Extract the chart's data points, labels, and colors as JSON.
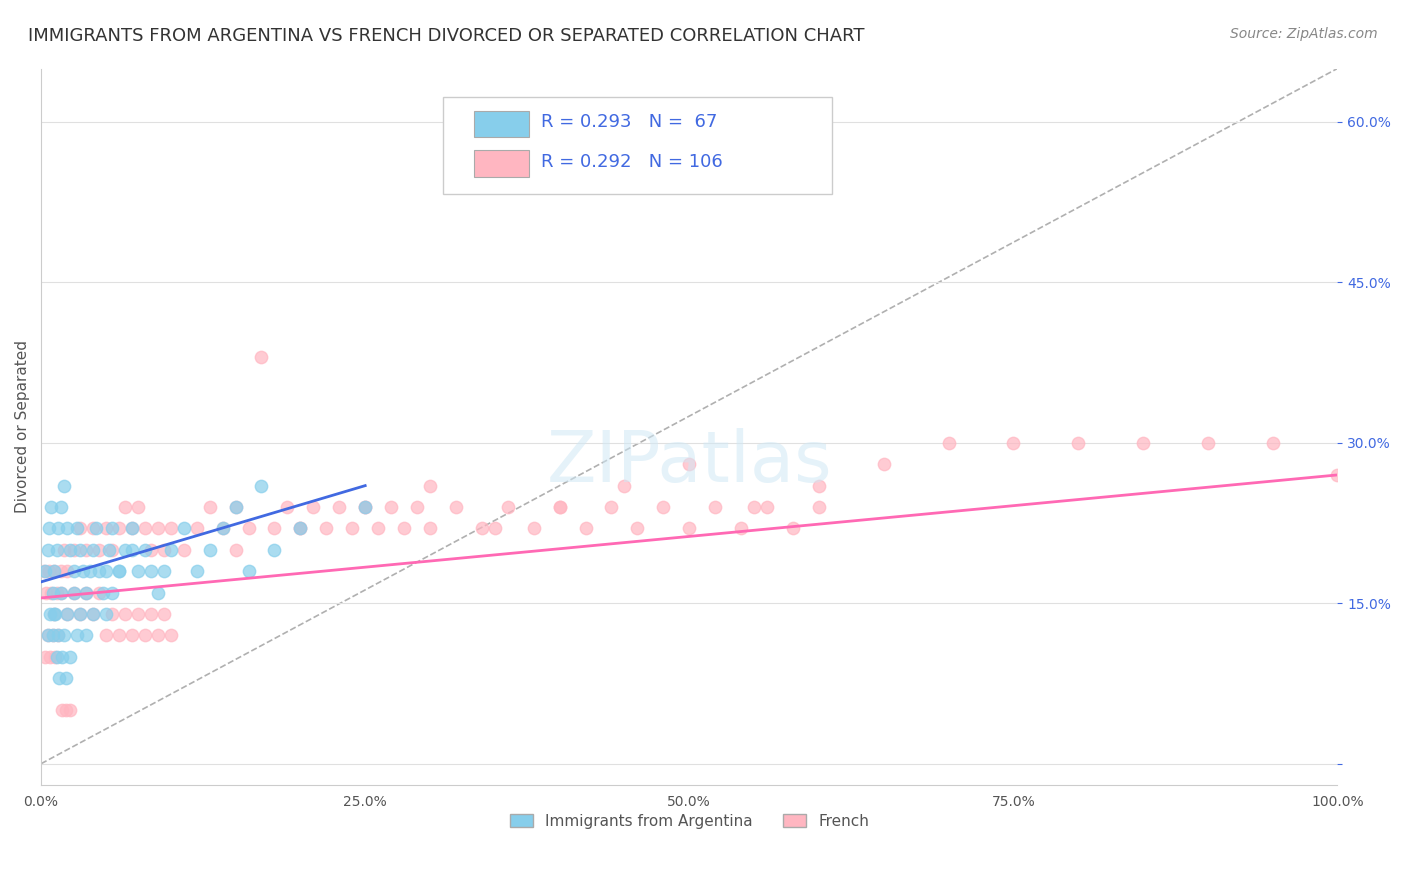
{
  "title": "IMMIGRANTS FROM ARGENTINA VS FRENCH DIVORCED OR SEPARATED CORRELATION CHART",
  "source": "Source: ZipAtlas.com",
  "ylabel": "Divorced or Separated",
  "xlabel": "",
  "watermark": "ZIPatlas",
  "xlim": [
    0.0,
    1.0
  ],
  "ylim": [
    -0.02,
    0.65
  ],
  "yticks": [
    0.0,
    0.15,
    0.3,
    0.45,
    0.6
  ],
  "xticks": [
    0.0,
    0.25,
    0.5,
    0.75,
    1.0
  ],
  "xtick_labels": [
    "0.0%",
    "25.0%",
    "50.0%",
    "75.0%",
    "100.0%"
  ],
  "ytick_labels": [
    "",
    "15.0%",
    "30.0%",
    "45.0%",
    "60.0%"
  ],
  "legend_blue_r": "R = 0.293",
  "legend_blue_n": "N =  67",
  "legend_pink_r": "R = 0.292",
  "legend_pink_n": "N = 106",
  "blue_color": "#87CEEB",
  "pink_color": "#FFB6C1",
  "blue_line_color": "#4169E1",
  "pink_line_color": "#FF69B4",
  "legend_text_color": "#4169E1",
  "blue_scatter_x": [
    0.003,
    0.005,
    0.006,
    0.008,
    0.009,
    0.01,
    0.012,
    0.013,
    0.015,
    0.018,
    0.02,
    0.022,
    0.025,
    0.028,
    0.03,
    0.032,
    0.035,
    0.038,
    0.04,
    0.042,
    0.045,
    0.048,
    0.05,
    0.052,
    0.055,
    0.06,
    0.065,
    0.07,
    0.075,
    0.08,
    0.085,
    0.09,
    0.095,
    0.1,
    0.11,
    0.12,
    0.13,
    0.14,
    0.15,
    0.16,
    0.17,
    0.01,
    0.015,
    0.02,
    0.025,
    0.03,
    0.035,
    0.04,
    0.005,
    0.007,
    0.009,
    0.011,
    0.013,
    0.05,
    0.055,
    0.06,
    0.07,
    0.012,
    0.018,
    0.022,
    0.028,
    0.2,
    0.25,
    0.18,
    0.014,
    0.016,
    0.019
  ],
  "blue_scatter_y": [
    0.18,
    0.2,
    0.22,
    0.24,
    0.16,
    0.18,
    0.2,
    0.22,
    0.24,
    0.26,
    0.22,
    0.2,
    0.18,
    0.22,
    0.2,
    0.18,
    0.16,
    0.18,
    0.2,
    0.22,
    0.18,
    0.16,
    0.18,
    0.2,
    0.22,
    0.18,
    0.2,
    0.22,
    0.18,
    0.2,
    0.18,
    0.16,
    0.18,
    0.2,
    0.22,
    0.18,
    0.2,
    0.22,
    0.24,
    0.18,
    0.26,
    0.14,
    0.16,
    0.14,
    0.16,
    0.14,
    0.12,
    0.14,
    0.12,
    0.14,
    0.12,
    0.14,
    0.12,
    0.14,
    0.16,
    0.18,
    0.2,
    0.1,
    0.12,
    0.1,
    0.12,
    0.22,
    0.24,
    0.2,
    0.08,
    0.1,
    0.08
  ],
  "pink_scatter_x": [
    0.002,
    0.004,
    0.006,
    0.008,
    0.01,
    0.012,
    0.015,
    0.018,
    0.02,
    0.025,
    0.03,
    0.035,
    0.04,
    0.045,
    0.05,
    0.055,
    0.06,
    0.065,
    0.07,
    0.075,
    0.08,
    0.085,
    0.09,
    0.095,
    0.1,
    0.11,
    0.12,
    0.13,
    0.14,
    0.15,
    0.16,
    0.17,
    0.18,
    0.19,
    0.2,
    0.21,
    0.22,
    0.23,
    0.24,
    0.25,
    0.26,
    0.27,
    0.28,
    0.29,
    0.3,
    0.32,
    0.34,
    0.36,
    0.38,
    0.4,
    0.42,
    0.44,
    0.46,
    0.48,
    0.5,
    0.52,
    0.54,
    0.56,
    0.58,
    0.6,
    0.01,
    0.015,
    0.02,
    0.025,
    0.03,
    0.035,
    0.04,
    0.045,
    0.05,
    0.055,
    0.06,
    0.065,
    0.07,
    0.075,
    0.08,
    0.085,
    0.09,
    0.095,
    0.1,
    0.15,
    0.2,
    0.25,
    0.3,
    0.35,
    0.4,
    0.45,
    0.5,
    0.55,
    0.6,
    0.65,
    0.7,
    0.75,
    0.8,
    0.85,
    0.9,
    0.95,
    1.0,
    0.003,
    0.005,
    0.007,
    0.009,
    0.011,
    0.013,
    0.016,
    0.019,
    0.022
  ],
  "pink_scatter_y": [
    0.18,
    0.16,
    0.18,
    0.16,
    0.18,
    0.16,
    0.18,
    0.2,
    0.18,
    0.2,
    0.22,
    0.2,
    0.22,
    0.2,
    0.22,
    0.2,
    0.22,
    0.24,
    0.22,
    0.24,
    0.22,
    0.2,
    0.22,
    0.2,
    0.22,
    0.2,
    0.22,
    0.24,
    0.22,
    0.24,
    0.22,
    0.38,
    0.22,
    0.24,
    0.22,
    0.24,
    0.22,
    0.24,
    0.22,
    0.24,
    0.22,
    0.24,
    0.22,
    0.24,
    0.22,
    0.24,
    0.22,
    0.24,
    0.22,
    0.24,
    0.22,
    0.24,
    0.22,
    0.24,
    0.22,
    0.24,
    0.22,
    0.24,
    0.22,
    0.24,
    0.14,
    0.16,
    0.14,
    0.16,
    0.14,
    0.16,
    0.14,
    0.16,
    0.12,
    0.14,
    0.12,
    0.14,
    0.12,
    0.14,
    0.12,
    0.14,
    0.12,
    0.14,
    0.12,
    0.2,
    0.22,
    0.24,
    0.26,
    0.22,
    0.24,
    0.26,
    0.28,
    0.24,
    0.26,
    0.28,
    0.3,
    0.3,
    0.3,
    0.3,
    0.3,
    0.3,
    0.27,
    0.1,
    0.12,
    0.1,
    0.12,
    0.1,
    0.12,
    0.05,
    0.05,
    0.05
  ],
  "ref_line_x": [
    0.0,
    1.0
  ],
  "ref_line_y": [
    0.0,
    0.65
  ],
  "blue_trend_x": [
    0.0,
    0.25
  ],
  "blue_trend_y": [
    0.17,
    0.26
  ],
  "pink_trend_x": [
    0.0,
    1.0
  ],
  "pink_trend_y": [
    0.155,
    0.27
  ],
  "background_color": "#ffffff",
  "grid_color": "#e0e0e0",
  "title_fontsize": 13,
  "axis_label_fontsize": 11,
  "tick_fontsize": 10,
  "legend_fontsize": 13
}
